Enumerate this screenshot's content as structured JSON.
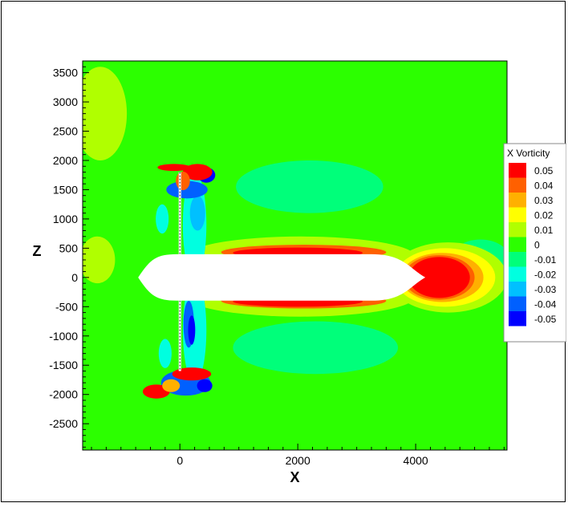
{
  "chart_data": {
    "type": "heatmap",
    "title": "",
    "xlabel": "X",
    "ylabel": "Z",
    "xlim": [
      -1650,
      5550
    ],
    "ylim": [
      -2950,
      3700
    ],
    "x_ticks": [
      0,
      2000,
      4000
    ],
    "x_tick_labels": [
      "0",
      "2000",
      "4000"
    ],
    "y_ticks": [
      3500,
      3000,
      2500,
      2000,
      1500,
      1000,
      500,
      0,
      -500,
      -1000,
      -1500,
      -2000,
      -2500
    ],
    "y_tick_labels": [
      "3500",
      "3000",
      "2500",
      "2000",
      "1500",
      "1000",
      "500",
      "0",
      "-500",
      "-1000",
      "-1500",
      "-2000",
      "-2500"
    ],
    "grid": false,
    "legend": {
      "title": "X Vorticity",
      "placement": "right",
      "levels": [
        {
          "label": "0.05",
          "value": 0.05,
          "color": "#ff0000"
        },
        {
          "label": "0.04",
          "value": 0.04,
          "color": "#ff6000"
        },
        {
          "label": "0.03",
          "value": 0.03,
          "color": "#ffb000"
        },
        {
          "label": "0.02",
          "value": 0.02,
          "color": "#ffff00"
        },
        {
          "label": "0.01",
          "value": 0.01,
          "color": "#b0ff00"
        },
        {
          "label": "0",
          "value": 0.0,
          "color": "#2cff00"
        },
        {
          "label": "-0.01",
          "value": -0.01,
          "color": "#00ff7a"
        },
        {
          "label": "-0.02",
          "value": -0.02,
          "color": "#00ffe0"
        },
        {
          "label": "-0.03",
          "value": -0.03,
          "color": "#00c0ff"
        },
        {
          "label": "-0.04",
          "value": -0.04,
          "color": "#0060ff"
        },
        {
          "label": "-0.05",
          "value": -0.05,
          "color": "#0000ff"
        }
      ]
    },
    "background_level": 0.0,
    "hull": {
      "nose_x": -700,
      "stern_x": 4150,
      "half_width": 390
    },
    "regions": [
      {
        "kind": "ellipse",
        "value": -0.01,
        "cx": 2200,
        "cz": 1550,
        "rx": 1250,
        "rz": 450
      },
      {
        "kind": "ellipse",
        "value": -0.01,
        "cx": 2300,
        "cz": -1200,
        "rx": 1400,
        "rz": 450
      },
      {
        "kind": "ellipse",
        "value": -0.01,
        "cx": 5100,
        "cz": 300,
        "rx": 500,
        "rz": 350
      },
      {
        "kind": "ellipse",
        "value": 0.01,
        "cx": -1350,
        "cz": 2800,
        "rx": 450,
        "rz": 800
      },
      {
        "kind": "ellipse",
        "value": 0.01,
        "cx": -1400,
        "cz": 300,
        "rx": 300,
        "rz": 400
      },
      {
        "kind": "ellipse",
        "value": 0.01,
        "cx": 2050,
        "cz": 350,
        "rx": 1950,
        "rz": 350
      },
      {
        "kind": "ellipse",
        "value": 0.01,
        "cx": 2050,
        "cz": -320,
        "rx": 1950,
        "rz": 350
      },
      {
        "kind": "ellipse",
        "value": 0.01,
        "cx": 4550,
        "cz": 0,
        "rx": 1000,
        "rz": 600
      },
      {
        "kind": "ellipse",
        "value": 0.02,
        "cx": 4500,
        "cz": 0,
        "rx": 850,
        "rz": 500
      },
      {
        "kind": "ellipse",
        "value": 0.03,
        "cx": 4450,
        "cz": 0,
        "rx": 700,
        "rz": 420
      },
      {
        "kind": "ellipse",
        "value": 0.04,
        "cx": 4400,
        "cz": 0,
        "rx": 600,
        "rz": 380
      },
      {
        "kind": "ellipse",
        "value": 0.05,
        "cx": 4400,
        "cz": 0,
        "rx": 520,
        "rz": 350
      },
      {
        "kind": "ellipse",
        "value": 0.04,
        "cx": 2100,
        "cz": 430,
        "rx": 1400,
        "rz": 130
      },
      {
        "kind": "ellipse",
        "value": 0.05,
        "cx": 2000,
        "cz": 420,
        "rx": 1100,
        "rz": 90
      },
      {
        "kind": "ellipse",
        "value": 0.04,
        "cx": 2100,
        "cz": -400,
        "rx": 1400,
        "rz": 130
      },
      {
        "kind": "ellipse",
        "value": 0.05,
        "cx": 2000,
        "cz": -410,
        "rx": 1100,
        "rz": 90
      },
      {
        "kind": "ellipse",
        "value": -0.02,
        "cx": 250,
        "cz": 900,
        "rx": 200,
        "rz": 900
      },
      {
        "kind": "ellipse",
        "value": -0.02,
        "cx": 250,
        "cz": -900,
        "rx": 200,
        "rz": 900
      },
      {
        "kind": "ellipse",
        "value": -0.03,
        "cx": 300,
        "cz": 1100,
        "rx": 130,
        "rz": 300
      },
      {
        "kind": "ellipse",
        "value": -0.04,
        "cx": 150,
        "cz": -800,
        "rx": 90,
        "rz": 400
      },
      {
        "kind": "ellipse",
        "value": -0.05,
        "cx": 200,
        "cz": -900,
        "rx": 60,
        "rz": 250
      },
      {
        "kind": "ellipse",
        "value": -0.04,
        "cx": 120,
        "cz": 1500,
        "rx": 350,
        "rz": 150
      },
      {
        "kind": "ellipse",
        "value": -0.05,
        "cx": 450,
        "cz": 1750,
        "rx": 150,
        "rz": 130
      },
      {
        "kind": "ellipse",
        "value": 0.05,
        "cx": -100,
        "cz": 1880,
        "rx": 280,
        "rz": 60
      },
      {
        "kind": "ellipse",
        "value": 0.05,
        "cx": 300,
        "cz": 1800,
        "rx": 250,
        "rz": 140
      },
      {
        "kind": "ellipse",
        "value": 0.04,
        "cx": 50,
        "cz": 1650,
        "rx": 120,
        "rz": 160
      },
      {
        "kind": "ellipse",
        "value": -0.04,
        "cx": 100,
        "cz": -1800,
        "rx": 420,
        "rz": 220
      },
      {
        "kind": "ellipse",
        "value": -0.05,
        "cx": 420,
        "cz": -1850,
        "rx": 130,
        "rz": 110
      },
      {
        "kind": "ellipse",
        "value": 0.05,
        "cx": 200,
        "cz": -1650,
        "rx": 330,
        "rz": 110
      },
      {
        "kind": "ellipse",
        "value": 0.05,
        "cx": -400,
        "cz": -1950,
        "rx": 230,
        "rz": 120
      },
      {
        "kind": "ellipse",
        "value": 0.03,
        "cx": -150,
        "cz": -1850,
        "rx": 150,
        "rz": 110
      },
      {
        "kind": "ellipse",
        "value": -0.02,
        "cx": -300,
        "cz": 1000,
        "rx": 110,
        "rz": 250
      },
      {
        "kind": "ellipse",
        "value": -0.02,
        "cx": -250,
        "cz": -1300,
        "rx": 110,
        "rz": 250
      }
    ],
    "strut": {
      "x": 0,
      "z_from": -1600,
      "z_to": 1800
    }
  }
}
